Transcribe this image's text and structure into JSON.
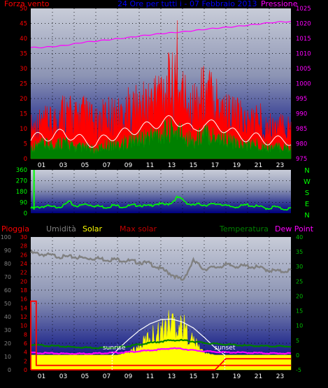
{
  "colors": {
    "wind": "#ff0000",
    "gust_line": "#ffffff",
    "wind_fill": "#008000",
    "pressure": "#ff00ff",
    "title": "#0000ff",
    "direction": "#00ff00",
    "rain": "#ff0000",
    "humidity": "#808080",
    "solar": "#ffff00",
    "max_solar": "#ffffff",
    "temperature": "#008000",
    "dewpoint": "#ff00ff",
    "axis_left": "#ff0000",
    "axis_right": "#00c000"
  },
  "header": {
    "wind_label": "Forza vento",
    "title": "24 Ore per tutti i - 07 Febbraio 2013",
    "pressure_label": "Pressione"
  },
  "dir_labels": [
    "N",
    "W",
    "S",
    "E",
    "N"
  ],
  "bottom_labels": {
    "rain": "Pioggia",
    "humidity": "Umidità",
    "solar": "Solar",
    "max_solar": "Max solar",
    "temperature": "Temperatura",
    "dewpoint": "Dew Point"
  },
  "annotations": {
    "sunrise": "sunrise",
    "sunset": "sunset"
  },
  "chart_data": [
    {
      "type": "line",
      "name": "wind-pressure",
      "xlim": [
        0,
        24
      ],
      "x_ticks": [
        "01",
        "03",
        "05",
        "07",
        "09",
        "11",
        "13",
        "15",
        "17",
        "19",
        "21",
        "23"
      ],
      "x_tick_hours": [
        1,
        3,
        5,
        7,
        9,
        11,
        13,
        15,
        17,
        19,
        21,
        23
      ],
      "ylim_left": [
        0,
        50
      ],
      "y_ticks_left": [
        0,
        5,
        10,
        15,
        20,
        25,
        30,
        35,
        40,
        45,
        50
      ],
      "ylim_right": [
        975,
        1025
      ],
      "y_ticks_right": [
        975,
        980,
        985,
        990,
        995,
        1000,
        1005,
        1010,
        1015,
        1020,
        1025
      ],
      "hours": [
        0,
        1,
        2,
        3,
        4,
        5,
        6,
        7,
        8,
        9,
        10,
        11,
        12,
        13,
        14,
        15,
        16,
        17,
        18,
        19,
        20,
        21,
        22,
        23,
        24
      ],
      "wind_gust": [
        14,
        16,
        16,
        22,
        18,
        20,
        15,
        20,
        19,
        22,
        23,
        25,
        31,
        33,
        29,
        24,
        30,
        28,
        22,
        19,
        16,
        18,
        14,
        14,
        14
      ],
      "wind_average": [
        6,
        8,
        7,
        9,
        7,
        6,
        5,
        7,
        8,
        9,
        10,
        11,
        12,
        13,
        12,
        9,
        12,
        11,
        10,
        8,
        7,
        7,
        6,
        6,
        6
      ],
      "wind_speed": [
        4,
        5,
        5,
        6,
        4,
        4,
        3,
        5,
        5,
        6,
        7,
        8,
        9,
        10,
        9,
        6,
        9,
        8,
        7,
        5,
        5,
        5,
        4,
        4,
        4
      ],
      "gust_peak": {
        "hour": 13.5,
        "value": 46
      },
      "pressure": [
        1012,
        1012,
        1012.3,
        1012.6,
        1013.2,
        1013.8,
        1014.1,
        1014.5,
        1014.9,
        1015.3,
        1015.8,
        1016.2,
        1016.6,
        1016.9,
        1017.2,
        1017.6,
        1018,
        1018.4,
        1018.7,
        1019,
        1019.4,
        1019.8,
        1020.2,
        1020.5,
        1020.6
      ]
    },
    {
      "type": "scatter",
      "name": "wind-direction",
      "xlim": [
        0,
        24
      ],
      "ylim": [
        0,
        360
      ],
      "y_ticks": [
        0,
        90,
        180,
        270,
        360
      ],
      "hours": [
        0,
        0.5,
        1,
        1.5,
        2,
        2.5,
        3,
        3.5,
        4,
        4.5,
        5,
        5.5,
        6,
        6.5,
        7,
        7.5,
        8,
        8.5,
        9,
        9.5,
        10,
        10.5,
        11,
        11.5,
        12,
        12.5,
        13,
        13.5,
        14,
        14.5,
        15,
        15.5,
        16,
        16.5,
        17,
        17.5,
        18,
        18.5,
        19,
        19.5,
        20,
        20.5,
        21,
        21.5,
        22,
        22.5,
        23,
        23.5,
        24
      ],
      "direction": [
        40,
        45,
        55,
        60,
        50,
        55,
        60,
        95,
        65,
        60,
        75,
        70,
        60,
        55,
        50,
        65,
        60,
        55,
        60,
        65,
        70,
        60,
        60,
        80,
        75,
        70,
        90,
        130,
        115,
        80,
        65,
        75,
        70,
        70,
        75,
        80,
        60,
        55,
        55,
        60,
        70,
        60,
        55,
        45,
        40,
        55,
        40,
        35,
        40
      ],
      "spike": {
        "hour": 0.3,
        "value": 360
      }
    },
    {
      "type": "line",
      "name": "temperature-humidity-solar",
      "xlim": [
        0,
        24
      ],
      "ylim_left_outer": [
        0,
        100
      ],
      "y_ticks_left_outer": [
        0,
        10,
        20,
        30,
        40,
        50,
        60,
        70,
        80,
        90,
        100
      ],
      "ylim_left_inner": [
        0,
        30
      ],
      "y_ticks_left_inner": [
        0,
        2,
        4,
        6,
        8,
        10,
        12,
        14,
        16,
        18,
        20,
        22,
        24,
        26,
        28,
        30
      ],
      "ylim_right": [
        -5,
        40
      ],
      "y_ticks_right": [
        -5,
        0,
        5,
        10,
        15,
        20,
        25,
        30,
        35,
        40
      ],
      "hours": [
        0,
        1,
        2,
        3,
        4,
        5,
        6,
        7,
        8,
        9,
        10,
        11,
        12,
        13,
        14,
        15,
        16,
        17,
        18,
        19,
        20,
        21,
        22,
        23,
        24
      ],
      "humidity": [
        88,
        87,
        86,
        85,
        85,
        84,
        84,
        83,
        83,
        82,
        81,
        80,
        76,
        72,
        67,
        82,
        76,
        77,
        79,
        78,
        78,
        77,
        75,
        74,
        75
      ],
      "temperature": [
        3.5,
        3.3,
        3.1,
        2.9,
        2.7,
        2.6,
        2.5,
        2.5,
        2.6,
        3,
        3.6,
        4.1,
        4.6,
        5,
        5,
        4.6,
        4.1,
        3.8,
        3.6,
        3.4,
        3.2,
        3.1,
        3,
        3,
        2.9
      ],
      "dew_point": [
        0.8,
        0.7,
        0.6,
        0.5,
        0.5,
        0.5,
        0.6,
        0.7,
        0.8,
        1,
        1.3,
        1.6,
        1.9,
        2.3,
        2.1,
        1.6,
        1.3,
        1.1,
        0.9,
        0.9,
        0.8,
        0.7,
        0.6,
        0.6,
        0.5
      ],
      "solar": [
        0,
        0,
        0,
        0,
        0,
        0,
        0,
        0,
        0,
        1,
        3.5,
        8,
        10,
        14,
        12,
        6,
        1,
        0,
        0,
        0,
        0,
        0,
        0,
        0,
        0
      ],
      "max_solar_curve_hours": [
        7.5,
        8,
        9,
        10,
        11,
        12,
        13,
        14,
        15,
        16,
        17,
        17.9
      ],
      "max_solar": [
        0,
        1.8,
        5.2,
        8.3,
        10.6,
        12,
        12.2,
        11.2,
        9.2,
        6,
        2.5,
        0
      ],
      "rain_rate": [
        15.5,
        1,
        1,
        1,
        1,
        1,
        1,
        1,
        1,
        1,
        1,
        1,
        1,
        1,
        1,
        1,
        1,
        1,
        1,
        1,
        1,
        1,
        1,
        1,
        1
      ],
      "rain_total": [
        0,
        0,
        0,
        0,
        0,
        0,
        0,
        0,
        0,
        0,
        0,
        0,
        0,
        0,
        0,
        0,
        0,
        0,
        2.5,
        2.5,
        2.5,
        2.5,
        2.5,
        2.5,
        2.5
      ],
      "sunrise_hour": 7.5,
      "sunset_hour": 17.9
    }
  ]
}
